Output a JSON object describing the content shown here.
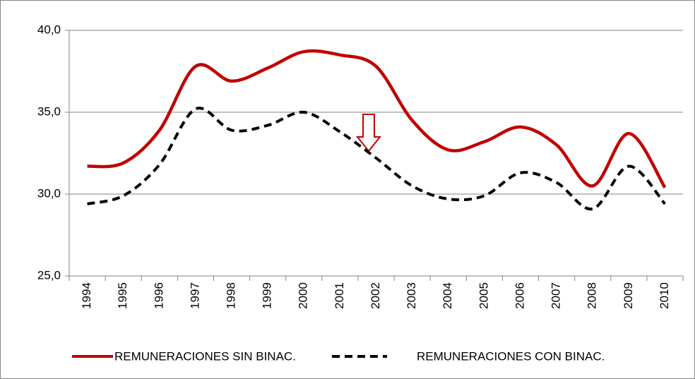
{
  "chart_data": {
    "type": "line",
    "categories": [
      "1994",
      "1995",
      "1996",
      "1997",
      "1998",
      "1999",
      "2000",
      "2001",
      "2002",
      "2003",
      "2004",
      "2005",
      "2006",
      "2007",
      "2008",
      "2009",
      "2010"
    ],
    "series": [
      {
        "name": "REMUNERACIONES SIN BINAC.",
        "color": "#c00000",
        "dash": false,
        "values": [
          31.7,
          31.9,
          33.9,
          37.8,
          36.9,
          37.7,
          38.7,
          38.5,
          37.8,
          34.5,
          32.7,
          33.2,
          34.1,
          33.0,
          30.5,
          33.7,
          30.4
        ]
      },
      {
        "name": "REMUNERACIONES CON BINAC.",
        "color": "#000000",
        "dash": true,
        "values": [
          29.4,
          29.9,
          31.8,
          35.2,
          33.9,
          34.2,
          35.0,
          33.8,
          32.2,
          30.5,
          29.7,
          29.9,
          31.3,
          30.7,
          29.1,
          31.7,
          29.4
        ]
      }
    ],
    "ylim": [
      25,
      40
    ],
    "yticks": [
      {
        "value": 25,
        "label": "25,0"
      },
      {
        "value": 30,
        "label": "30,0"
      },
      {
        "value": 35,
        "label": "35,0"
      },
      {
        "value": 40,
        "label": "40,0"
      }
    ],
    "grid": true,
    "legend": "bottom"
  }
}
